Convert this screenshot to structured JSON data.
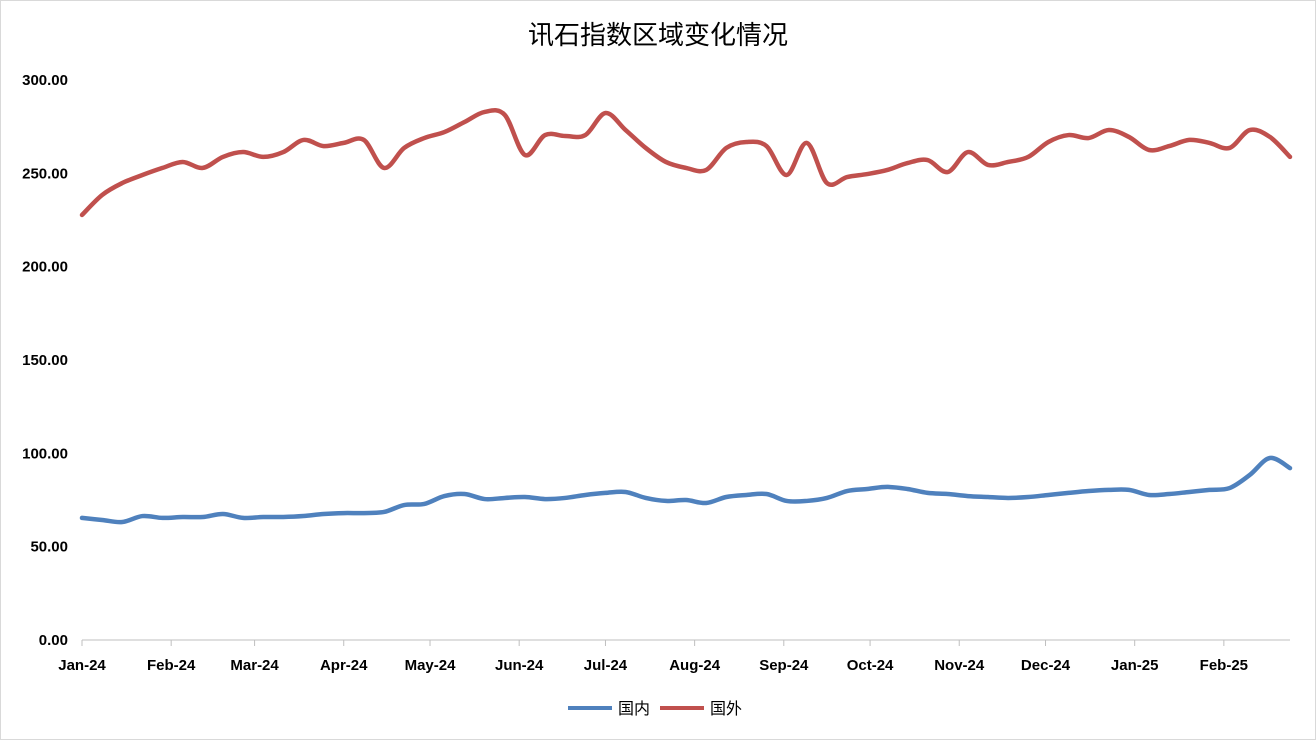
{
  "chart_data": {
    "type": "line",
    "title": "讯石指数区域变化情况",
    "xlabel": "",
    "ylabel": "",
    "ylim": [
      0,
      300
    ],
    "yticks": [
      "0.00",
      "50.00",
      "100.00",
      "150.00",
      "200.00",
      "250.00",
      "300.00"
    ],
    "xticks": [
      {
        "date": "2024-01-01",
        "label": "Jan-24"
      },
      {
        "date": "2024-02-01",
        "label": "Feb-24"
      },
      {
        "date": "2024-03-01",
        "label": "Mar-24"
      },
      {
        "date": "2024-04-01",
        "label": "Apr-24"
      },
      {
        "date": "2024-05-01",
        "label": "May-24"
      },
      {
        "date": "2024-06-01",
        "label": "Jun-24"
      },
      {
        "date": "2024-07-01",
        "label": "Jul-24"
      },
      {
        "date": "2024-08-01",
        "label": "Aug-24"
      },
      {
        "date": "2024-09-01",
        "label": "Sep-24"
      },
      {
        "date": "2024-10-01",
        "label": "Oct-24"
      },
      {
        "date": "2024-11-01",
        "label": "Nov-24"
      },
      {
        "date": "2024-12-01",
        "label": "Dec-24"
      },
      {
        "date": "2025-01-01",
        "label": "Jan-25"
      },
      {
        "date": "2025-02-01",
        "label": "Feb-25"
      }
    ],
    "grid": false,
    "legend_position": "bottom",
    "smooth": true,
    "x": [
      "2024-01-01",
      "2024-01-08",
      "2024-01-15",
      "2024-01-22",
      "2024-01-29",
      "2024-02-05",
      "2024-02-12",
      "2024-02-19",
      "2024-02-26",
      "2024-03-04",
      "2024-03-11",
      "2024-03-18",
      "2024-03-25",
      "2024-04-01",
      "2024-04-08",
      "2024-04-15",
      "2024-04-22",
      "2024-04-29",
      "2024-05-06",
      "2024-05-13",
      "2024-05-20",
      "2024-05-27",
      "2024-06-03",
      "2024-06-10",
      "2024-06-17",
      "2024-06-24",
      "2024-07-01",
      "2024-07-08",
      "2024-07-15",
      "2024-07-22",
      "2024-07-29",
      "2024-08-05",
      "2024-08-12",
      "2024-08-19",
      "2024-08-26",
      "2024-09-02",
      "2024-09-09",
      "2024-09-16",
      "2024-09-23",
      "2024-09-30",
      "2024-10-07",
      "2024-10-14",
      "2024-10-21",
      "2024-10-28",
      "2024-11-04",
      "2024-11-11",
      "2024-11-18",
      "2024-11-25",
      "2024-12-02",
      "2024-12-09",
      "2024-12-16",
      "2024-12-23",
      "2024-12-30",
      "2025-01-06",
      "2025-01-13",
      "2025-01-20",
      "2025-01-27",
      "2025-02-03",
      "2025-02-10",
      "2025-02-17",
      "2025-02-24"
    ],
    "series": [
      {
        "name": "国内",
        "color": "#4f81bd",
        "values": [
          65.4,
          64.3,
          63.2,
          66.4,
          65.4,
          65.9,
          65.9,
          67.5,
          65.4,
          65.9,
          65.9,
          66.4,
          67.5,
          68.0,
          68.0,
          68.6,
          72.3,
          72.9,
          77.1,
          78.2,
          75.5,
          76.1,
          76.6,
          75.5,
          76.1,
          77.7,
          78.8,
          79.3,
          76.1,
          74.5,
          75.0,
          73.4,
          76.6,
          77.7,
          78.2,
          74.5,
          74.5,
          76.1,
          79.8,
          80.9,
          82.0,
          80.9,
          78.8,
          78.2,
          77.1,
          76.6,
          76.1,
          76.6,
          77.7,
          78.8,
          79.8,
          80.4,
          80.4,
          77.7,
          78.2,
          79.3,
          80.4,
          81.4,
          88.4,
          97.5,
          92.1
        ]
      },
      {
        "name": "国外",
        "color": "#c0504d",
        "values": [
          227.7,
          238.4,
          244.8,
          249.1,
          252.9,
          256.1,
          252.9,
          258.8,
          261.4,
          258.8,
          261.4,
          267.9,
          264.6,
          266.3,
          267.9,
          252.9,
          263.6,
          268.9,
          272.1,
          277.5,
          282.9,
          281.3,
          259.8,
          270.5,
          270.0,
          270.5,
          282.3,
          273.2,
          263.6,
          256.1,
          252.9,
          251.8,
          263.6,
          266.8,
          264.6,
          249.1,
          266.3,
          244.8,
          248.0,
          249.6,
          251.8,
          255.5,
          257.1,
          250.7,
          261.4,
          254.5,
          256.1,
          258.8,
          266.8,
          270.5,
          268.9,
          273.2,
          269.5,
          262.5,
          264.6,
          267.9,
          266.3,
          263.6,
          273.2,
          269.5,
          258.8
        ]
      }
    ]
  }
}
